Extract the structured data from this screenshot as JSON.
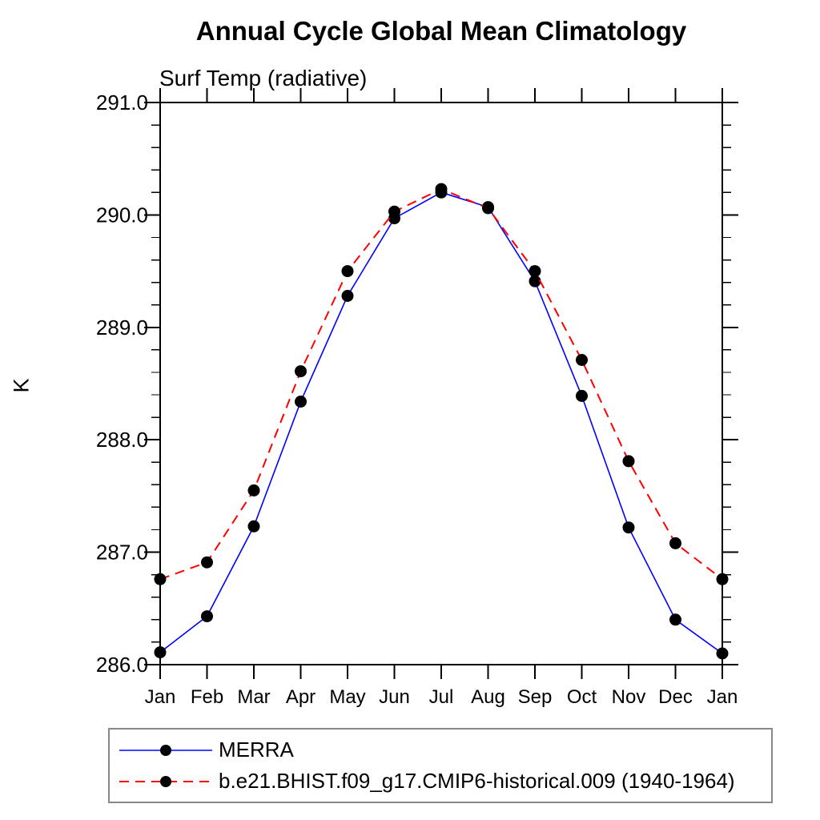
{
  "page": {
    "background_color": "#ffffff",
    "axis_color": "#000000",
    "legend_border_color": "#888888"
  },
  "chart_data": {
    "type": "line",
    "title": "Annual Cycle Global Mean Climatology",
    "subtitle": "Surf Temp (radiative)",
    "xlabel": "",
    "ylabel": "K",
    "ylim": [
      286.0,
      291.0
    ],
    "y_ticks": [
      286.0,
      287.0,
      288.0,
      289.0,
      290.0,
      291.0
    ],
    "y_tick_labels": [
      "286.0",
      "287.0",
      "288.0",
      "289.0",
      "290.0",
      "291.0"
    ],
    "y_minor_step": 0.2,
    "x_tick_labels": [
      "Jan",
      "Feb",
      "Mar",
      "Apr",
      "May",
      "Jun",
      "Jul",
      "Aug",
      "Sep",
      "Oct",
      "Nov",
      "Dec",
      "Jan"
    ],
    "grid": false,
    "legend_position": "bottom-left",
    "series": [
      {
        "name": "MERRA",
        "color": "#0000ff",
        "line_style": "solid",
        "line_width": 1.6,
        "marker": "filled-circle",
        "marker_color": "#000000",
        "values": [
          286.11,
          286.43,
          287.23,
          288.34,
          289.28,
          289.97,
          290.2,
          290.07,
          289.41,
          288.39,
          287.22,
          286.4,
          286.1
        ]
      },
      {
        "name": "b.e21.BHIST.f09_g17.CMIP6-historical.009 (1940-1964)",
        "color": "#ff0000",
        "line_style": "dashed",
        "line_width": 2,
        "marker": "filled-circle",
        "marker_color": "#000000",
        "values": [
          286.76,
          286.91,
          287.55,
          288.61,
          289.5,
          290.03,
          290.23,
          290.06,
          289.5,
          288.71,
          287.81,
          287.08,
          286.76
        ]
      }
    ]
  }
}
